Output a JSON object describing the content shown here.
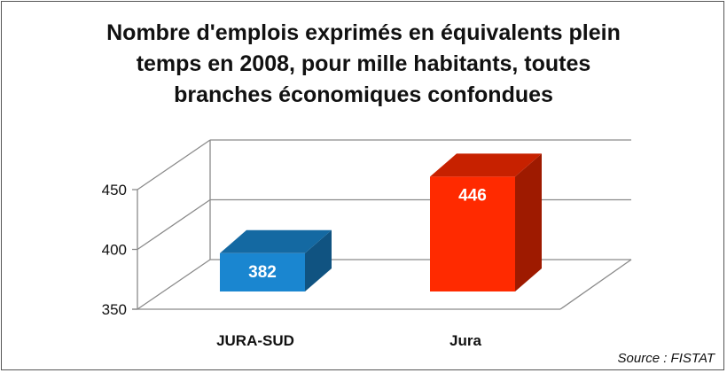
{
  "chart_data": {
    "type": "bar",
    "title_lines": [
      "Nombre d'emplois exprimés en équivalents plein",
      "temps en 2008, pour mille habitants, toutes",
      "branches économiques confondues"
    ],
    "categories": [
      "JURA-SUD",
      "Jura"
    ],
    "values": [
      382,
      446
    ],
    "colors": [
      "#1a86d0",
      "#ff2a00"
    ],
    "ylim": [
      350,
      450
    ],
    "yticks": [
      350,
      400,
      450
    ],
    "grid": true,
    "source": "Source : FISTAT"
  }
}
